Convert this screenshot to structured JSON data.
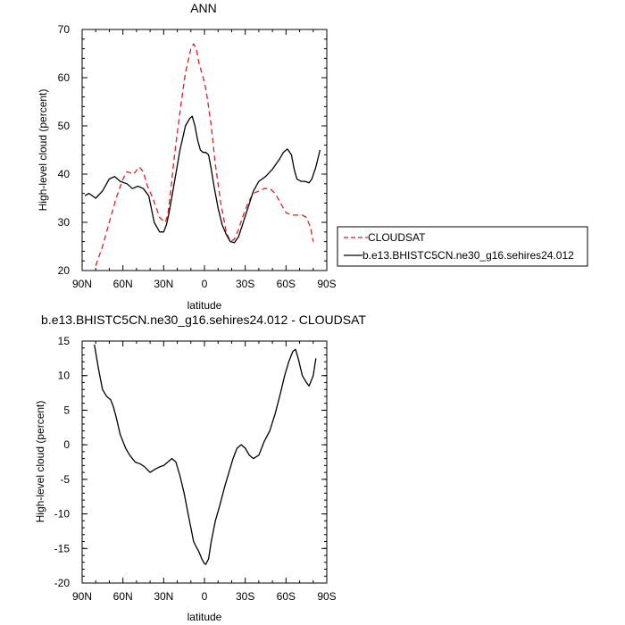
{
  "chart_data": [
    {
      "type": "line",
      "title": "ANN",
      "xlabel": "latitude",
      "ylabel": "High-level cloud (percent)",
      "xlim": [
        90,
        -90
      ],
      "ylim": [
        20,
        70
      ],
      "x_ticks": [
        90,
        60,
        30,
        0,
        -30,
        -60,
        -90
      ],
      "x_tick_labels": [
        "90N",
        "60N",
        "30N",
        "0",
        "30S",
        "60S",
        "90S"
      ],
      "y_ticks": [
        20,
        30,
        40,
        50,
        60,
        70
      ],
      "y_tick_labels": [
        "20",
        "30",
        "40",
        "50",
        "60",
        "70"
      ],
      "legend_position": "right",
      "series": [
        {
          "name": "CLOUDSAT",
          "color": "#e41a1c",
          "dash": "dashed",
          "x": [
            80,
            75,
            70,
            65,
            60,
            57,
            52,
            48,
            45,
            42,
            38,
            33,
            29,
            27,
            25,
            22,
            18,
            14,
            10,
            8,
            6,
            4,
            2,
            0,
            -2,
            -5,
            -8,
            -12,
            -16,
            -19,
            -22,
            -25,
            -28,
            -32,
            -36,
            -40,
            -44,
            -48,
            -52,
            -56,
            -60,
            -64,
            -68,
            -72,
            -75,
            -78,
            -80
          ],
          "y": [
            21,
            25,
            30,
            35,
            39,
            40.5,
            40,
            41.5,
            40.5,
            37.5,
            35,
            31,
            30,
            31.5,
            36,
            44,
            53,
            61,
            66,
            67,
            66,
            63,
            61,
            59,
            56,
            50,
            42,
            34,
            28,
            26,
            26.5,
            28.5,
            31,
            34,
            36,
            36.5,
            37,
            37,
            36,
            34,
            32,
            31.5,
            31.5,
            31.5,
            31,
            29,
            26
          ]
        },
        {
          "name": "b.e13.BHISTC5CN.ne30_g16.sehires24.012",
          "color": "#000000",
          "dash": "solid",
          "x": [
            88,
            85,
            80,
            75,
            70,
            66,
            62,
            57,
            53,
            49,
            45,
            41,
            37,
            33,
            30,
            28,
            26,
            22,
            18,
            14,
            11,
            9,
            7,
            5,
            3,
            1,
            -1,
            -3,
            -5,
            -7,
            -10,
            -13,
            -16,
            -19,
            -22,
            -25,
            -28,
            -32,
            -36,
            -40,
            -45,
            -50,
            -55,
            -58,
            -61,
            -64,
            -66,
            -68,
            -71,
            -74,
            -77,
            -79,
            -82,
            -85
          ],
          "y": [
            35.5,
            36,
            35,
            36.5,
            39,
            39.5,
            38.5,
            38,
            37,
            37.5,
            37,
            35.5,
            30,
            28,
            28,
            29.5,
            32,
            38.5,
            45,
            50,
            51.5,
            52,
            50,
            47,
            45,
            44.5,
            44.5,
            44,
            41,
            37.5,
            33,
            29.5,
            27.5,
            26,
            25.8,
            27,
            29.5,
            33,
            36.5,
            38.5,
            39.5,
            41,
            43,
            44.5,
            45.2,
            44,
            41,
            39,
            38.5,
            38.5,
            38.2,
            39,
            41.5,
            45
          ]
        }
      ]
    },
    {
      "type": "line",
      "title": "b.e13.BHISTC5CN.ne30_g16.sehires24.012 - CLOUDSAT",
      "xlabel": "latitude",
      "ylabel": "High-level cloud (percent)",
      "xlim": [
        90,
        -90
      ],
      "ylim": [
        -20,
        15
      ],
      "x_ticks": [
        90,
        60,
        30,
        0,
        -30,
        -60,
        -90
      ],
      "x_tick_labels": [
        "90N",
        "60N",
        "30N",
        "0",
        "30S",
        "60S",
        "90S"
      ],
      "y_ticks": [
        -20,
        -15,
        -10,
        -5,
        0,
        5,
        10,
        15
      ],
      "y_tick_labels": [
        "-20",
        "-15",
        "-10",
        "-5",
        "0",
        "5",
        "10",
        "15"
      ],
      "series": [
        {
          "color": "#000000",
          "dash": "solid",
          "x": [
            81,
            78,
            75,
            72,
            69,
            67,
            65,
            62,
            58,
            55,
            51,
            47,
            44,
            40,
            36,
            33,
            30,
            27,
            24,
            21,
            18,
            15,
            12,
            10,
            8,
            6,
            4,
            2,
            0,
            -1,
            -3,
            -5,
            -8,
            -11,
            -15,
            -18,
            -21,
            -24,
            -27,
            -30,
            -33,
            -36,
            -40,
            -44,
            -48,
            -52,
            -56,
            -59,
            -62,
            -65,
            -67,
            -69,
            -72,
            -75,
            -77,
            -80,
            -82
          ],
          "y": [
            14.5,
            11,
            8,
            7,
            6.5,
            5.5,
            4,
            1.5,
            -0.5,
            -1.5,
            -2.5,
            -2.8,
            -3.2,
            -4,
            -3.5,
            -3.2,
            -3,
            -2.5,
            -2,
            -2.5,
            -4.5,
            -7,
            -10,
            -12,
            -14,
            -14.8,
            -15.5,
            -16.5,
            -17.2,
            -17.3,
            -16.5,
            -14,
            -11,
            -9,
            -6,
            -4,
            -2,
            -0.5,
            0,
            -0.5,
            -1.5,
            -2,
            -1.5,
            0.5,
            2,
            4.5,
            7.5,
            10,
            12,
            13.5,
            13.8,
            12.5,
            10,
            9,
            8.5,
            10,
            12.5
          ]
        }
      ]
    }
  ]
}
